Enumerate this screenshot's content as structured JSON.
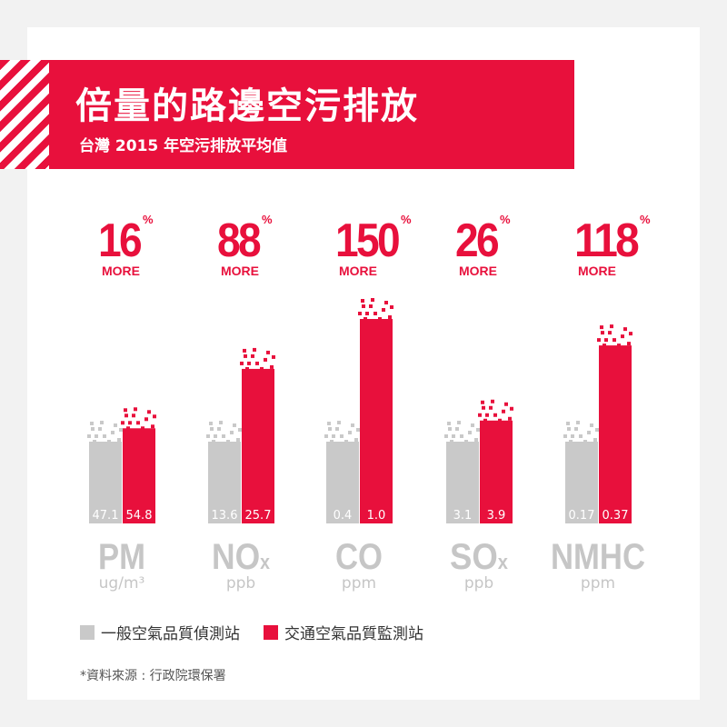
{
  "title": "倍量的路邊空污排放",
  "subtitle": "台灣 2015 年空污排放平均值",
  "colors": {
    "accent": "#e8103c",
    "general": "#c9c9c9",
    "traffic": "#e8103c",
    "category_text": "#c6c6c6",
    "band": "#e8103c"
  },
  "chart_data": {
    "type": "bar",
    "categories": [
      "PM",
      "NOx",
      "CO",
      "SOx",
      "NMHC"
    ],
    "units": [
      "ug/m³",
      "ppb",
      "ppm",
      "ppb",
      "ppm"
    ],
    "category_main": [
      "PM",
      "NO",
      "CO",
      "SO",
      "NMHC"
    ],
    "category_sub": [
      "",
      "x",
      "",
      "x",
      ""
    ],
    "series": [
      {
        "name": "一般空氣品質偵測站",
        "values": [
          47.1,
          13.6,
          0.4,
          3.1,
          0.17
        ],
        "labels": [
          "47.1",
          "13.6",
          "0.4",
          "3.1",
          "0.17"
        ]
      },
      {
        "name": "交通空氣品質監測站",
        "values": [
          54.8,
          25.7,
          1.0,
          3.9,
          0.37
        ],
        "labels": [
          "54.8",
          "25.7",
          "1.0",
          "3.9",
          "0.37"
        ]
      }
    ],
    "increase_percent": [
      "16",
      "88",
      "150",
      "26",
      "118"
    ],
    "percent_symbol": "%",
    "increase_word": "MORE",
    "legend_position": "bottom-left"
  },
  "source": "*資料來源 : 行政院環保署"
}
